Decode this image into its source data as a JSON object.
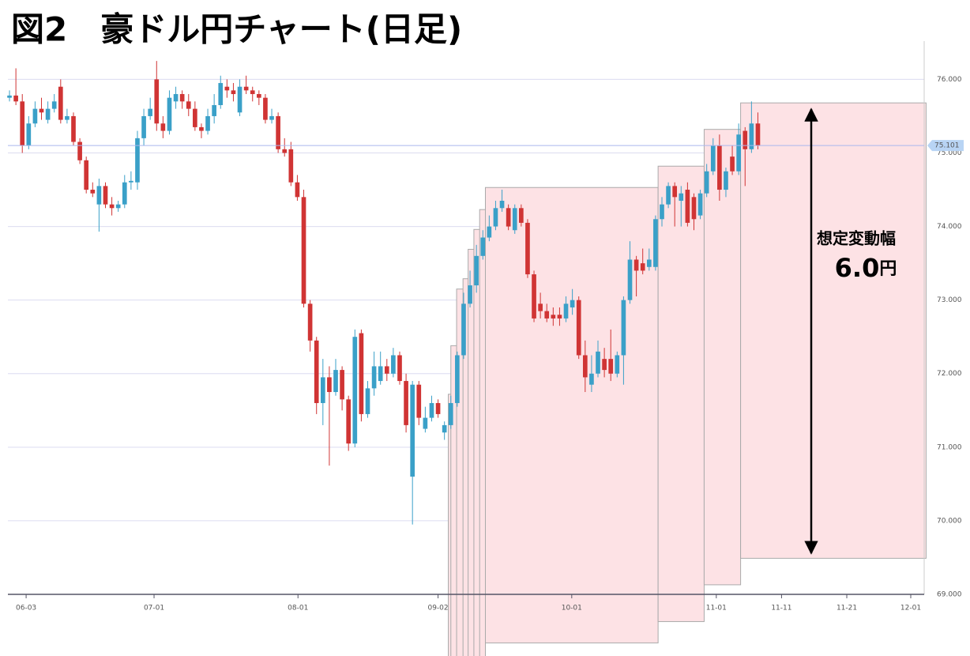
{
  "chart_data": {
    "type": "candlestick",
    "title": "図2　豪ドル円チャート(日足)",
    "up_color": "#3aa0c8",
    "down_color": "#d03434",
    "box_color": "#fde2e5",
    "open": [
      75.75,
      75.78,
      75.7,
      75.1,
      75.4,
      75.6,
      75.45,
      75.6,
      75.9,
      75.45,
      75.5,
      75.15,
      74.9,
      74.5,
      74.3,
      74.55,
      74.3,
      74.25,
      74.3,
      74.6,
      74.6,
      75.2,
      75.5,
      76.0,
      75.4,
      75.3,
      75.7,
      75.8,
      75.7,
      75.6,
      75.35,
      75.3,
      75.5,
      75.65,
      75.9,
      75.85,
      75.55,
      75.9,
      75.85,
      75.8,
      75.75,
      75.45,
      75.5,
      75.05,
      75.05,
      74.6,
      74.4,
      72.95,
      72.45,
      71.6,
      71.95,
      71.75,
      72.05,
      71.65,
      71.05,
      72.55,
      71.45,
      71.8,
      71.9,
      72.1,
      72.0,
      72.25,
      71.9,
      70.6,
      71.85,
      71.25,
      71.4,
      71.6,
      71.2,
      71.3,
      71.6,
      72.25,
      72.95,
      73.2,
      73.6,
      73.85,
      74.0,
      74.25,
      74.25,
      73.95,
      74.25,
      74.05,
      73.35,
      72.95,
      72.85,
      72.8,
      72.8,
      72.75,
      72.9,
      73.0,
      72.25,
      71.85,
      72.0,
      72.2,
      72.2,
      72.0,
      72.25,
      73.0,
      73.55,
      73.5,
      73.45,
      73.45,
      74.1,
      74.3,
      74.55,
      74.35,
      74.5,
      74.4,
      74.15,
      74.45,
      74.75,
      75.1,
      74.5,
      74.95,
      74.75,
      75.3,
      75.05,
      75.4
    ],
    "high": [
      75.85,
      76.15,
      75.8,
      75.5,
      75.7,
      75.75,
      75.7,
      75.8,
      76.0,
      75.6,
      75.55,
      75.2,
      74.95,
      74.6,
      74.65,
      74.6,
      74.4,
      74.35,
      74.7,
      74.75,
      75.3,
      75.6,
      75.75,
      76.25,
      75.5,
      75.85,
      75.9,
      75.85,
      75.8,
      75.7,
      75.4,
      75.6,
      75.8,
      76.05,
      76.0,
      75.95,
      76.0,
      76.05,
      75.9,
      75.85,
      75.8,
      75.6,
      75.55,
      75.2,
      75.15,
      74.7,
      74.5,
      73.0,
      72.5,
      72.2,
      72.1,
      72.2,
      72.1,
      71.7,
      72.6,
      72.6,
      71.9,
      72.3,
      72.3,
      72.2,
      72.35,
      72.3,
      72.0,
      71.9,
      71.9,
      71.55,
      71.7,
      71.65,
      71.35,
      71.7,
      72.3,
      73.1,
      73.4,
      73.75,
      73.95,
      74.15,
      74.35,
      74.5,
      74.3,
      74.3,
      74.3,
      74.1,
      73.4,
      73.1,
      72.95,
      72.9,
      72.9,
      73.05,
      73.15,
      73.05,
      72.45,
      72.25,
      72.45,
      72.35,
      72.6,
      72.3,
      73.05,
      73.8,
      73.6,
      73.7,
      73.7,
      74.15,
      74.4,
      74.6,
      74.6,
      74.55,
      74.6,
      74.45,
      74.5,
      74.85,
      75.2,
      75.25,
      74.8,
      75.1,
      75.4,
      75.35,
      75.7,
      75.55
    ],
    "low": [
      75.7,
      75.65,
      75.0,
      75.05,
      75.35,
      75.45,
      75.4,
      75.55,
      75.4,
      75.4,
      75.1,
      74.85,
      74.45,
      74.4,
      73.93,
      74.25,
      74.15,
      74.2,
      74.25,
      74.5,
      74.5,
      75.1,
      75.45,
      75.3,
      75.2,
      75.25,
      75.6,
      75.6,
      75.5,
      75.3,
      75.2,
      75.25,
      75.4,
      75.6,
      75.75,
      75.7,
      75.5,
      75.8,
      75.7,
      75.65,
      75.4,
      75.4,
      75.0,
      74.95,
      74.55,
      74.35,
      72.9,
      72.3,
      71.45,
      71.3,
      70.75,
      71.7,
      71.5,
      70.95,
      71.0,
      71.35,
      71.4,
      71.7,
      71.85,
      71.9,
      71.95,
      71.85,
      71.2,
      69.95,
      71.3,
      71.2,
      71.35,
      71.4,
      71.1,
      71.25,
      71.55,
      72.2,
      72.9,
      73.1,
      73.55,
      73.8,
      73.95,
      74.2,
      73.95,
      73.9,
      74.0,
      73.3,
      72.7,
      72.75,
      72.7,
      72.65,
      72.65,
      72.7,
      72.8,
      72.2,
      71.75,
      71.75,
      71.95,
      71.95,
      71.9,
      71.95,
      71.85,
      72.95,
      73.05,
      73.35,
      73.4,
      73.4,
      74.0,
      74.25,
      74.0,
      74.0,
      74.0,
      73.95,
      74.1,
      74.4,
      74.7,
      74.35,
      74.4,
      74.7,
      74.7,
      74.55,
      75.0,
      75.05
    ],
    "close": [
      75.78,
      75.7,
      75.1,
      75.4,
      75.6,
      75.55,
      75.6,
      75.7,
      75.45,
      75.5,
      75.15,
      74.9,
      74.5,
      74.45,
      74.55,
      74.3,
      74.25,
      74.3,
      74.6,
      74.62,
      75.2,
      75.5,
      75.6,
      75.4,
      75.3,
      75.75,
      75.8,
      75.7,
      75.6,
      75.35,
      75.3,
      75.5,
      75.65,
      75.95,
      75.85,
      75.8,
      75.9,
      75.85,
      75.8,
      75.75,
      75.45,
      75.5,
      75.05,
      75.0,
      74.6,
      74.4,
      72.95,
      72.45,
      71.6,
      71.95,
      71.75,
      72.05,
      71.65,
      71.05,
      72.5,
      71.45,
      71.8,
      72.1,
      72.1,
      72.0,
      72.25,
      71.9,
      71.3,
      71.85,
      71.4,
      71.4,
      71.6,
      71.45,
      71.3,
      71.6,
      72.25,
      72.95,
      73.2,
      73.6,
      73.85,
      74.0,
      74.25,
      74.35,
      74.0,
      74.25,
      74.05,
      73.35,
      72.75,
      72.85,
      72.75,
      72.75,
      72.75,
      72.95,
      73.0,
      72.25,
      71.95,
      72.0,
      72.3,
      72.05,
      72.0,
      72.25,
      73.0,
      73.55,
      73.4,
      73.4,
      73.55,
      74.1,
      74.3,
      74.55,
      74.4,
      74.45,
      74.05,
      74.1,
      74.45,
      74.75,
      75.1,
      74.5,
      74.75,
      74.75,
      75.25,
      75.05,
      75.4,
      75.1
    ],
    "boxes": [
      {
        "x": [
          68.6,
          74.4
        ],
        "high": 71.72,
        "low": 67.9
      },
      {
        "x": [
          69.0,
          74.4
        ],
        "high": 72.38,
        "low": 67.9
      },
      {
        "x": [
          69.9,
          74.4
        ],
        "high": 73.15,
        "low": 67.9
      },
      {
        "x": [
          70.9,
          74.4
        ],
        "high": 73.29,
        "low": 67.9
      },
      {
        "x": [
          71.7,
          74.4
        ],
        "high": 73.69,
        "low": 67.9
      },
      {
        "x": [
          72.6,
          74.4
        ],
        "high": 73.96,
        "low": 67.9
      },
      {
        "x": [
          73.5,
          74.4
        ],
        "high": 74.23,
        "low": 67.9
      },
      {
        "x": [
          74.4,
          101.4
        ],
        "high": 74.53,
        "low": 68.34
      },
      {
        "x": [
          101.4,
          108.6
        ],
        "high": 74.82,
        "low": 68.63
      },
      {
        "x": [
          108.6,
          114.3
        ],
        "high": 75.32,
        "low": 69.13
      },
      {
        "x": [
          114.3,
          143.3
        ],
        "high": 75.68,
        "low": 69.49
      }
    ],
    "last_price": 75.101,
    "xlim": [
      -0.25,
      143
    ],
    "ylim": [
      69.0,
      76.52
    ],
    "xticks": [
      {
        "value": 2.6,
        "label": "06-03"
      },
      {
        "value": 22.6,
        "label": "07-01"
      },
      {
        "value": 45.1,
        "label": "08-01"
      },
      {
        "value": 67.0,
        "label": "09-02"
      },
      {
        "value": 87.9,
        "label": "10-01"
      },
      {
        "value": 110.5,
        "label": "11-01"
      },
      {
        "value": 120.7,
        "label": "11-11"
      },
      {
        "value": 130.9,
        "label": "11-21"
      },
      {
        "value": 140.9,
        "label": "12-01"
      }
    ],
    "yticks": [
      {
        "value": 69,
        "label": "69.000"
      },
      {
        "value": 70,
        "label": "70.000"
      },
      {
        "value": 71,
        "label": "71.000"
      },
      {
        "value": 72,
        "label": "72.000"
      },
      {
        "value": 73,
        "label": "73.000"
      },
      {
        "value": 74,
        "label": "74.000"
      },
      {
        "value": 75,
        "label": "75.000"
      },
      {
        "value": 76,
        "label": "76.000"
      }
    ],
    "grid": true,
    "annotation": "想定変動幅",
    "annotation_value": "6.0",
    "annotation_unit": "円"
  }
}
